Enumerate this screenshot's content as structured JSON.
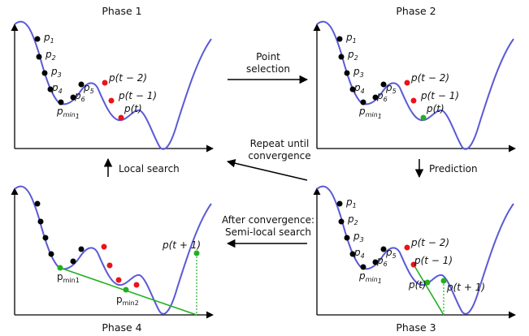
{
  "phases": {
    "p1": {
      "title": "Phase 1"
    },
    "p2": {
      "title": "Phase 2"
    },
    "p3": {
      "title": "Phase 3"
    },
    "p4": {
      "title": "Phase 4"
    }
  },
  "arrows": {
    "point_selection": [
      "Point",
      "selection"
    ],
    "prediction": "Prediction",
    "repeat": [
      "Repeat until",
      "convergence"
    ],
    "local_search": "Local search",
    "semi_local": [
      "After convergence:",
      "Semi-local search"
    ]
  },
  "labels": {
    "p1": "p",
    "p1_sub": "1",
    "p2": "p",
    "p2_sub": "2",
    "p3": "p",
    "p3_sub": "3",
    "p4": "p",
    "p4_sub": "4",
    "p5": "p",
    "p5_sub": "5",
    "p6": "p",
    "p6_sub": "6",
    "pmin": "p",
    "pmin_sub": "min",
    "pmin_subsub": "1",
    "pt2": "p(t − 2)",
    "pt1": "p(t − 1)",
    "pt": "p(t)",
    "pt_plus": "p(t + 1)",
    "pmin1_up": "p",
    "pmin1_up_sub": "min1",
    "pmin2_up": "p",
    "pmin2_up_sub": "min2"
  },
  "colors": {
    "curve": "#5a5ad6",
    "point_black": "#000000",
    "point_red": "#e8141a",
    "point_green": "#22b022",
    "line_green": "#22b022"
  }
}
